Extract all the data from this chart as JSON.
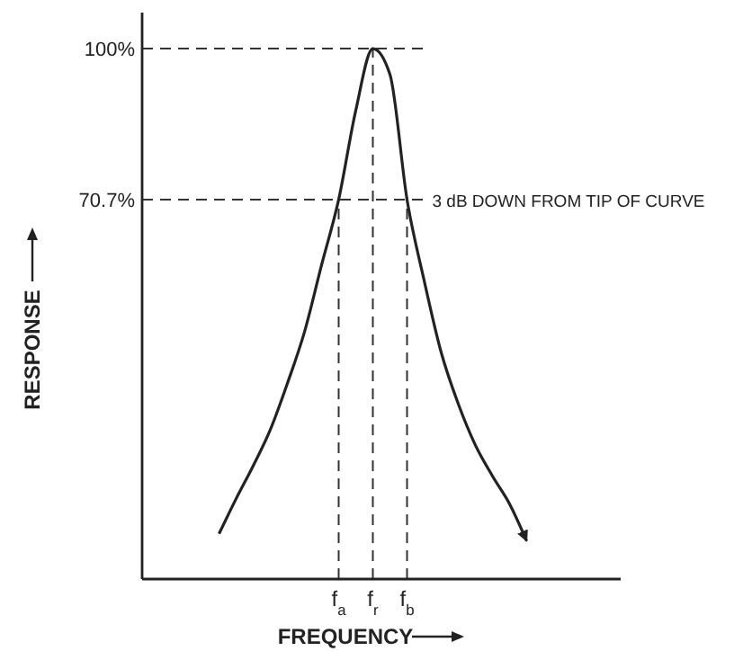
{
  "chart_data": {
    "type": "line",
    "xlabel": "FREQUENCY",
    "ylabel": "RESPONSE",
    "categories": [
      null,
      null,
      null,
      null,
      null,
      null,
      null,
      null,
      null,
      null,
      null,
      "f$_{a}$",
      null,
      "f$_{r}$",
      null,
      "f$_{b}$",
      null,
      null,
      null,
      null,
      null,
      null,
      null,
      null,
      null,
      null,
      null,
      null
    ],
    "series": [
      {
        "color": "#222222",
        "values": [
          null,
          null,
          null,
          null,
          5.8,
          12.6,
          19,
          26,
          35,
          45,
          58,
          70.7,
          88,
          100,
          95,
          70.7,
          55,
          41,
          31,
          23,
          17,
          11.6,
          4.4,
          null,
          null,
          null,
          null,
          null
        ]
      }
    ],
    "ylim": [
      -3,
      107
    ],
    "yticks": [
      {
        "value": 100,
        "label": "100%"
      },
      {
        "value": 70.7,
        "label": "70.7%"
      }
    ],
    "ref_lines": [
      {
        "axis": "y",
        "value": 100,
        "line_style": "dashed"
      },
      {
        "axis": "y",
        "value": 70.7,
        "label": "3 dB DOWN FROM TIP OF CURVE",
        "line_style": "dashed"
      },
      {
        "axis": "x",
        "value": "f$_{a}$",
        "line_style": "dashed"
      },
      {
        "axis": "x",
        "value": "f$_{r}$",
        "line_style": "dashed"
      },
      {
        "axis": "x",
        "value": "f$_{b}$",
        "line_style": "dashed"
      }
    ],
    "grid": false,
    "marker": "none",
    "line_style": "solid"
  }
}
